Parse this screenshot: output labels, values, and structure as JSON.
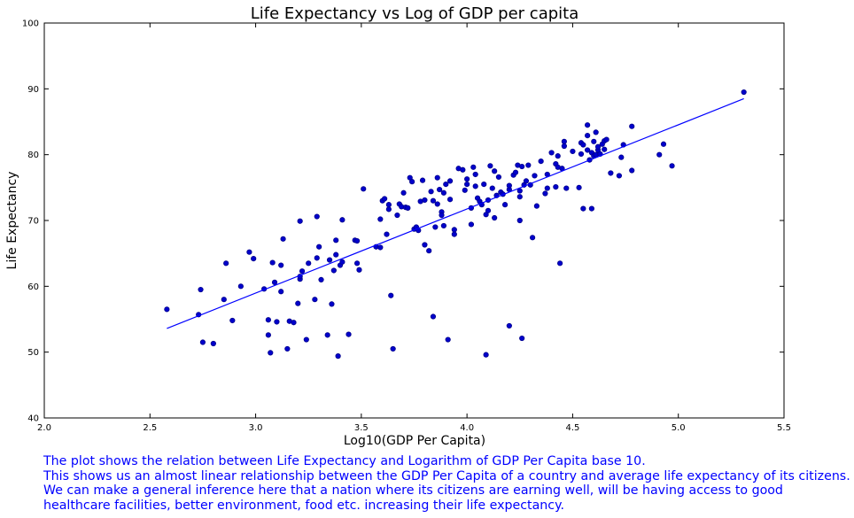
{
  "chart_data": {
    "type": "scatter",
    "title": "Life Expectancy vs Log of GDP per capita",
    "xlabel": "Log10(GDP Per Capita)",
    "ylabel": "Life Expectancy",
    "xlim": [
      2.0,
      5.5
    ],
    "ylim": [
      40,
      100
    ],
    "x_ticks": [
      2.0,
      2.5,
      3.0,
      3.5,
      4.0,
      4.5,
      5.0,
      5.5
    ],
    "x_tick_labels": [
      "2.0",
      "2.5",
      "3.0",
      "3.5",
      "4.0",
      "4.5",
      "5.0",
      "5.5"
    ],
    "y_ticks": [
      40,
      50,
      60,
      70,
      80,
      90,
      100
    ],
    "y_tick_labels": [
      "40",
      "50",
      "60",
      "70",
      "80",
      "90",
      "100"
    ],
    "grid": false,
    "colors": {
      "points": "#00008b",
      "point_fill": "#0000cc",
      "line": "#0000ff",
      "text": "#000000"
    },
    "series": [
      {
        "name": "countries",
        "kind": "scatter",
        "points": [
          [
            2.58,
            56.5
          ],
          [
            2.74,
            59.5
          ],
          [
            2.73,
            55.7
          ],
          [
            2.75,
            51.5
          ],
          [
            2.8,
            51.3
          ],
          [
            2.85,
            58.0
          ],
          [
            2.86,
            63.5
          ],
          [
            2.89,
            54.8
          ],
          [
            2.93,
            60.0
          ],
          [
            2.97,
            65.2
          ],
          [
            2.99,
            64.2
          ],
          [
            3.04,
            59.6
          ],
          [
            3.06,
            52.6
          ],
          [
            3.06,
            54.9
          ],
          [
            3.07,
            49.9
          ],
          [
            3.08,
            63.6
          ],
          [
            3.09,
            60.6
          ],
          [
            3.1,
            54.6
          ],
          [
            3.12,
            59.2
          ],
          [
            3.12,
            63.2
          ],
          [
            3.13,
            67.2
          ],
          [
            3.15,
            50.5
          ],
          [
            3.16,
            54.7
          ],
          [
            3.18,
            54.5
          ],
          [
            3.2,
            57.4
          ],
          [
            3.21,
            61.1
          ],
          [
            3.21,
            61.5
          ],
          [
            3.21,
            69.9
          ],
          [
            3.22,
            62.3
          ],
          [
            3.24,
            51.9
          ],
          [
            3.25,
            63.5
          ],
          [
            3.28,
            58.0
          ],
          [
            3.29,
            64.3
          ],
          [
            3.29,
            70.6
          ],
          [
            3.31,
            61.0
          ],
          [
            3.3,
            66.0
          ],
          [
            3.34,
            52.6
          ],
          [
            3.35,
            64.0
          ],
          [
            3.36,
            57.3
          ],
          [
            3.37,
            62.4
          ],
          [
            3.38,
            67.0
          ],
          [
            3.38,
            64.8
          ],
          [
            3.39,
            49.4
          ],
          [
            3.4,
            63.2
          ],
          [
            3.41,
            63.7
          ],
          [
            3.41,
            70.1
          ],
          [
            3.44,
            52.7
          ],
          [
            3.47,
            67.0
          ],
          [
            3.48,
            66.9
          ],
          [
            3.48,
            63.5
          ],
          [
            3.49,
            62.5
          ],
          [
            3.51,
            74.8
          ],
          [
            3.57,
            66.0
          ],
          [
            3.59,
            65.9
          ],
          [
            3.59,
            70.2
          ],
          [
            3.6,
            73.0
          ],
          [
            3.61,
            73.3
          ],
          [
            3.62,
            67.9
          ],
          [
            3.63,
            71.7
          ],
          [
            3.63,
            72.4
          ],
          [
            3.64,
            58.6
          ],
          [
            3.65,
            50.5
          ],
          [
            3.67,
            70.8
          ],
          [
            3.68,
            72.5
          ],
          [
            3.69,
            72.1
          ],
          [
            3.7,
            74.2
          ],
          [
            3.71,
            72.0
          ],
          [
            3.72,
            71.9
          ],
          [
            3.73,
            76.5
          ],
          [
            3.74,
            75.9
          ],
          [
            3.75,
            68.7
          ],
          [
            3.76,
            69.0
          ],
          [
            3.77,
            68.5
          ],
          [
            3.78,
            72.9
          ],
          [
            3.79,
            76.1
          ],
          [
            3.8,
            73.1
          ],
          [
            3.8,
            66.3
          ],
          [
            3.82,
            65.4
          ],
          [
            3.83,
            74.4
          ],
          [
            3.84,
            55.4
          ],
          [
            3.84,
            73.0
          ],
          [
            3.85,
            69.0
          ],
          [
            3.86,
            72.5
          ],
          [
            3.86,
            76.5
          ],
          [
            3.87,
            74.7
          ],
          [
            3.88,
            71.3
          ],
          [
            3.88,
            70.8
          ],
          [
            3.89,
            69.2
          ],
          [
            3.89,
            74.2
          ],
          [
            3.9,
            75.5
          ],
          [
            3.91,
            51.9
          ],
          [
            3.92,
            73.2
          ],
          [
            3.92,
            76.0
          ],
          [
            3.94,
            67.9
          ],
          [
            3.94,
            68.6
          ],
          [
            3.96,
            77.9
          ],
          [
            3.98,
            77.7
          ],
          [
            3.99,
            74.6
          ],
          [
            4.0,
            76.3
          ],
          [
            4.0,
            75.5
          ],
          [
            4.02,
            71.9
          ],
          [
            4.02,
            69.4
          ],
          [
            4.03,
            78.1
          ],
          [
            4.04,
            75.2
          ],
          [
            4.04,
            77.0
          ],
          [
            4.05,
            73.4
          ],
          [
            4.06,
            72.9
          ],
          [
            4.07,
            72.4
          ],
          [
            4.08,
            75.5
          ],
          [
            4.09,
            70.9
          ],
          [
            4.09,
            49.6
          ],
          [
            4.1,
            71.5
          ],
          [
            4.1,
            73.1
          ],
          [
            4.11,
            78.3
          ],
          [
            4.12,
            74.9
          ],
          [
            4.13,
            70.4
          ],
          [
            4.13,
            77.5
          ],
          [
            4.14,
            73.8
          ],
          [
            4.15,
            76.6
          ],
          [
            4.16,
            74.3
          ],
          [
            4.17,
            74.0
          ],
          [
            4.18,
            72.4
          ],
          [
            4.2,
            54.0
          ],
          [
            4.2,
            74.7
          ],
          [
            4.2,
            75.3
          ],
          [
            4.22,
            76.9
          ],
          [
            4.23,
            77.3
          ],
          [
            4.24,
            78.4
          ],
          [
            4.25,
            74.5
          ],
          [
            4.25,
            70.0
          ],
          [
            4.25,
            73.6
          ],
          [
            4.26,
            52.1
          ],
          [
            4.26,
            78.2
          ],
          [
            4.27,
            75.4
          ],
          [
            4.28,
            76.0
          ],
          [
            4.29,
            78.4
          ],
          [
            4.3,
            75.4
          ],
          [
            4.31,
            67.4
          ],
          [
            4.32,
            76.8
          ],
          [
            4.33,
            72.2
          ],
          [
            4.35,
            79.0
          ],
          [
            4.37,
            74.1
          ],
          [
            4.38,
            74.9
          ],
          [
            4.38,
            77.0
          ],
          [
            4.4,
            80.3
          ],
          [
            4.42,
            78.6
          ],
          [
            4.42,
            75.1
          ],
          [
            4.43,
            78.1
          ],
          [
            4.43,
            79.8
          ],
          [
            4.44,
            63.5
          ],
          [
            4.45,
            77.9
          ],
          [
            4.46,
            81.3
          ],
          [
            4.46,
            82.0
          ],
          [
            4.47,
            74.9
          ],
          [
            4.5,
            80.5
          ],
          [
            4.53,
            75.0
          ],
          [
            4.54,
            81.8
          ],
          [
            4.54,
            80.1
          ],
          [
            4.55,
            81.5
          ],
          [
            4.55,
            71.8
          ],
          [
            4.57,
            84.5
          ],
          [
            4.57,
            82.9
          ],
          [
            4.57,
            80.7
          ],
          [
            4.58,
            79.2
          ],
          [
            4.59,
            71.8
          ],
          [
            4.59,
            80.3
          ],
          [
            4.6,
            79.8
          ],
          [
            4.6,
            82.0
          ],
          [
            4.61,
            83.4
          ],
          [
            4.61,
            80.0
          ],
          [
            4.62,
            80.7
          ],
          [
            4.62,
            81.2
          ],
          [
            4.63,
            80.1
          ],
          [
            4.64,
            81.6
          ],
          [
            4.65,
            82.1
          ],
          [
            4.65,
            80.8
          ],
          [
            4.66,
            82.3
          ],
          [
            4.68,
            77.2
          ],
          [
            4.72,
            76.8
          ],
          [
            4.73,
            79.6
          ],
          [
            4.74,
            81.5
          ],
          [
            4.78,
            77.6
          ],
          [
            4.78,
            84.3
          ],
          [
            4.91,
            80.0
          ],
          [
            4.93,
            81.6
          ],
          [
            4.97,
            78.3
          ],
          [
            5.31,
            89.5
          ]
        ]
      },
      {
        "name": "linear fit",
        "kind": "line",
        "x": [
          2.58,
          5.31
        ],
        "y": [
          53.6,
          88.5
        ]
      }
    ]
  },
  "caption": {
    "lines": [
      "The plot shows the relation between Life Expectancy and Logarithm of GDP Per Capita base 10.",
      "This shows us an almost linear relationship between the GDP Per Capita of a country and average life expectancy of its citizens.",
      "We can make a general inference here that a nation where its citizens are earning well, will be having access to good",
      "healthcare facilities, better environment, food etc. increasing their life expectancy."
    ]
  }
}
